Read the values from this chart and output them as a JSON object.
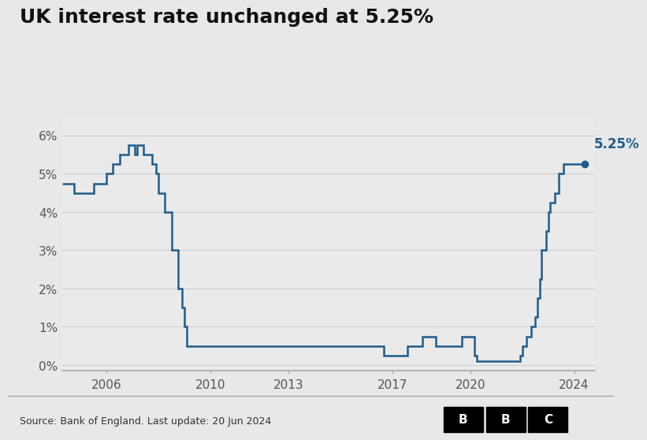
{
  "title": "UK interest rate unchanged at 5.25%",
  "source_text": "Source: Bank of England. Last update: 20 Jun 2024",
  "line_color": "#1f5c8b",
  "dot_color": "#1f5c8b",
  "annotation_text": "5.25%",
  "annotation_color": "#1f5c8b",
  "outer_bg": "#e8e8e8",
  "plot_bg": "#eaeaea",
  "ylim": [
    -0.15,
    6.5
  ],
  "yticks": [
    0,
    1,
    2,
    3,
    4,
    5,
    6
  ],
  "ytick_labels": [
    "0%",
    "1%",
    "2%",
    "3%",
    "4%",
    "5%",
    "6%"
  ],
  "xticks": [
    2006,
    2010,
    2013,
    2017,
    2020,
    2024
  ],
  "xlim": [
    2004.3,
    2024.8
  ],
  "title_fontsize": 18,
  "tick_fontsize": 11,
  "data": [
    [
      2004.3,
      4.75
    ],
    [
      2004.75,
      4.75
    ],
    [
      2004.75,
      4.5
    ],
    [
      2005.5,
      4.5
    ],
    [
      2005.5,
      4.75
    ],
    [
      2006.0,
      4.75
    ],
    [
      2006.0,
      5.0
    ],
    [
      2006.25,
      5.0
    ],
    [
      2006.25,
      5.25
    ],
    [
      2006.5,
      5.25
    ],
    [
      2006.5,
      5.5
    ],
    [
      2006.83,
      5.5
    ],
    [
      2006.83,
      5.75
    ],
    [
      2007.08,
      5.75
    ],
    [
      2007.08,
      5.5
    ],
    [
      2007.17,
      5.5
    ],
    [
      2007.17,
      5.75
    ],
    [
      2007.42,
      5.75
    ],
    [
      2007.42,
      5.5
    ],
    [
      2007.75,
      5.5
    ],
    [
      2007.75,
      5.25
    ],
    [
      2007.92,
      5.25
    ],
    [
      2007.92,
      5.0
    ],
    [
      2008.0,
      5.0
    ],
    [
      2008.0,
      4.5
    ],
    [
      2008.25,
      4.5
    ],
    [
      2008.25,
      4.0
    ],
    [
      2008.5,
      4.0
    ],
    [
      2008.5,
      3.0
    ],
    [
      2008.75,
      3.0
    ],
    [
      2008.75,
      2.0
    ],
    [
      2008.92,
      2.0
    ],
    [
      2008.92,
      1.5
    ],
    [
      2009.0,
      1.5
    ],
    [
      2009.0,
      1.0
    ],
    [
      2009.08,
      1.0
    ],
    [
      2009.08,
      0.5
    ],
    [
      2016.67,
      0.5
    ],
    [
      2016.67,
      0.25
    ],
    [
      2017.58,
      0.25
    ],
    [
      2017.58,
      0.5
    ],
    [
      2018.17,
      0.5
    ],
    [
      2018.17,
      0.75
    ],
    [
      2018.67,
      0.75
    ],
    [
      2018.67,
      0.5
    ],
    [
      2019.67,
      0.5
    ],
    [
      2019.67,
      0.75
    ],
    [
      2020.17,
      0.75
    ],
    [
      2020.17,
      0.25
    ],
    [
      2020.25,
      0.25
    ],
    [
      2020.25,
      0.1
    ],
    [
      2021.92,
      0.1
    ],
    [
      2021.92,
      0.25
    ],
    [
      2022.0,
      0.25
    ],
    [
      2022.0,
      0.5
    ],
    [
      2022.17,
      0.5
    ],
    [
      2022.17,
      0.75
    ],
    [
      2022.33,
      0.75
    ],
    [
      2022.33,
      1.0
    ],
    [
      2022.5,
      1.0
    ],
    [
      2022.5,
      1.25
    ],
    [
      2022.58,
      1.25
    ],
    [
      2022.58,
      1.75
    ],
    [
      2022.67,
      1.75
    ],
    [
      2022.67,
      2.25
    ],
    [
      2022.75,
      2.25
    ],
    [
      2022.75,
      3.0
    ],
    [
      2022.92,
      3.0
    ],
    [
      2022.92,
      3.5
    ],
    [
      2023.0,
      3.5
    ],
    [
      2023.0,
      4.0
    ],
    [
      2023.08,
      4.0
    ],
    [
      2023.08,
      4.25
    ],
    [
      2023.25,
      4.25
    ],
    [
      2023.25,
      4.5
    ],
    [
      2023.42,
      4.5
    ],
    [
      2023.42,
      5.0
    ],
    [
      2023.58,
      5.0
    ],
    [
      2023.58,
      5.25
    ],
    [
      2024.42,
      5.25
    ]
  ]
}
